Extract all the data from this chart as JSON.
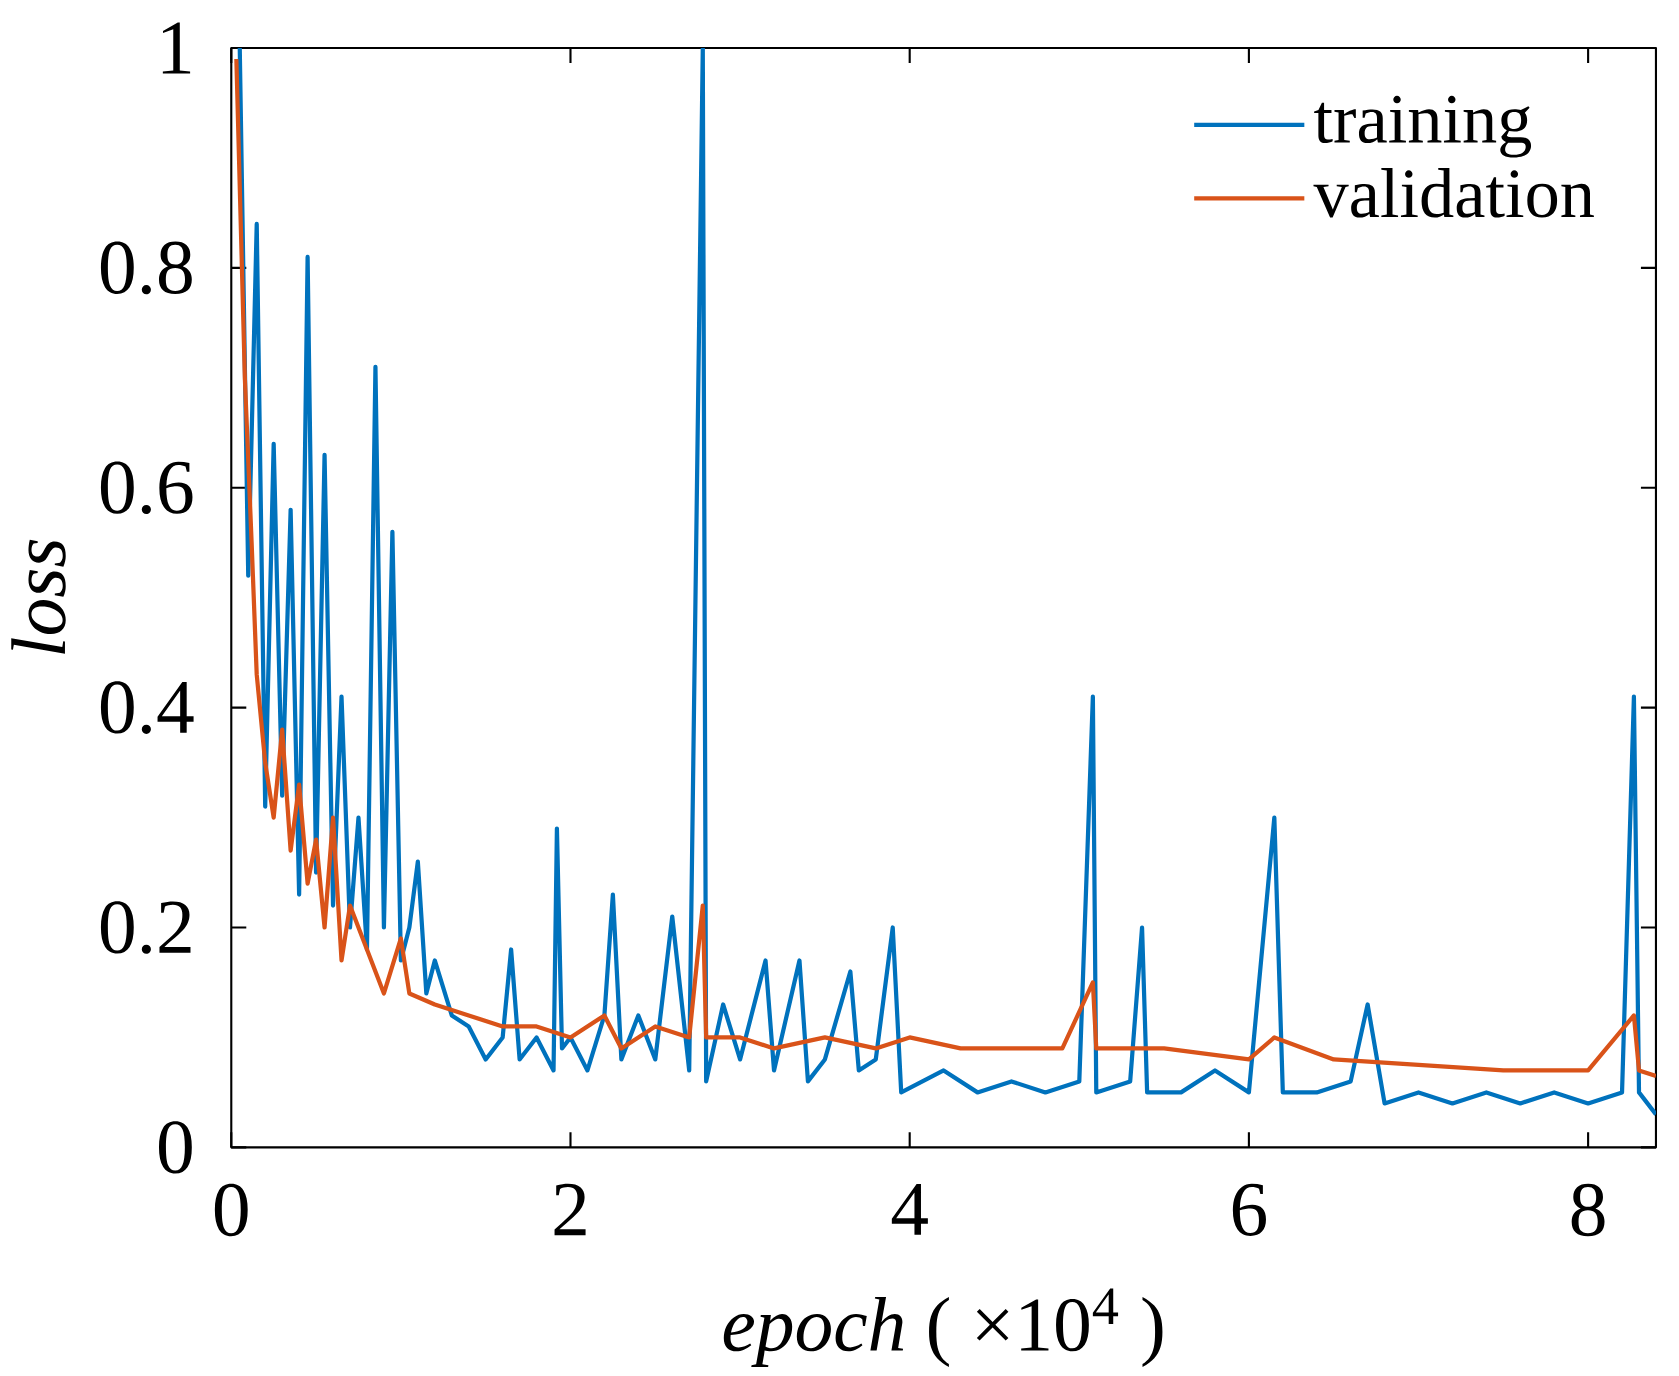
{
  "chart_data": {
    "type": "line",
    "xlabel": "*epoch* ( ×10$^{4}$ )",
    "ylabel": "loss",
    "xlim": [
      0,
      8.4
    ],
    "ylim": [
      0,
      1
    ],
    "xticks": [
      0,
      2,
      4,
      6,
      8
    ],
    "yticks": [
      0,
      0.2,
      0.4,
      0.6,
      0.8,
      1
    ],
    "legend": "top right",
    "grid": false,
    "line_style": "solid",
    "marker": "none",
    "series": [
      {
        "name": "training",
        "color": "#0072bd",
        "x": [
          0.05,
          0.1,
          0.15,
          0.2,
          0.25,
          0.3,
          0.35,
          0.4,
          0.45,
          0.5,
          0.55,
          0.6,
          0.65,
          0.7,
          0.75,
          0.8,
          0.85,
          0.9,
          0.95,
          1.0,
          1.05,
          1.1,
          1.15,
          1.2,
          1.3,
          1.4,
          1.5,
          1.6,
          1.65,
          1.7,
          1.8,
          1.9,
          1.92,
          1.95,
          2.0,
          2.1,
          2.2,
          2.25,
          2.3,
          2.4,
          2.5,
          2.6,
          2.7,
          2.78,
          2.8,
          2.9,
          3.0,
          3.15,
          3.2,
          3.35,
          3.4,
          3.5,
          3.65,
          3.7,
          3.8,
          3.9,
          3.95,
          4.2,
          4.4,
          4.6,
          4.8,
          5.0,
          5.08,
          5.1,
          5.3,
          5.37,
          5.4,
          5.6,
          5.8,
          6.0,
          6.15,
          6.2,
          6.4,
          6.6,
          6.7,
          6.8,
          7.0,
          7.2,
          7.4,
          7.6,
          7.8,
          8.0,
          8.2,
          8.27,
          8.3,
          8.4
        ],
        "values": [
          1.0,
          0.52,
          0.84,
          0.31,
          0.64,
          0.32,
          0.58,
          0.23,
          0.81,
          0.25,
          0.63,
          0.22,
          0.41,
          0.2,
          0.3,
          0.18,
          0.71,
          0.2,
          0.56,
          0.17,
          0.2,
          0.26,
          0.14,
          0.17,
          0.12,
          0.11,
          0.08,
          0.1,
          0.18,
          0.08,
          0.1,
          0.07,
          0.29,
          0.09,
          0.1,
          0.07,
          0.12,
          0.23,
          0.08,
          0.12,
          0.08,
          0.21,
          0.07,
          1.0,
          0.06,
          0.13,
          0.08,
          0.17,
          0.07,
          0.17,
          0.06,
          0.08,
          0.16,
          0.07,
          0.08,
          0.2,
          0.05,
          0.07,
          0.05,
          0.06,
          0.05,
          0.06,
          0.41,
          0.05,
          0.06,
          0.2,
          0.05,
          0.05,
          0.07,
          0.05,
          0.3,
          0.05,
          0.05,
          0.06,
          0.13,
          0.04,
          0.05,
          0.04,
          0.05,
          0.04,
          0.05,
          0.04,
          0.05,
          0.41,
          0.05,
          0.03
        ]
      },
      {
        "name": "validation",
        "color": "#d95319",
        "x": [
          0.03,
          0.08,
          0.12,
          0.15,
          0.2,
          0.25,
          0.3,
          0.35,
          0.4,
          0.45,
          0.5,
          0.55,
          0.6,
          0.65,
          0.7,
          0.8,
          0.9,
          1.0,
          1.05,
          1.2,
          1.4,
          1.6,
          1.8,
          2.0,
          2.2,
          2.3,
          2.5,
          2.7,
          2.78,
          2.8,
          3.0,
          3.2,
          3.5,
          3.8,
          4.0,
          4.3,
          4.6,
          4.9,
          5.08,
          5.1,
          5.5,
          6.0,
          6.15,
          6.5,
          7.0,
          7.5,
          8.0,
          8.27,
          8.3,
          8.4
        ],
        "values": [
          0.99,
          0.7,
          0.55,
          0.43,
          0.35,
          0.3,
          0.38,
          0.27,
          0.33,
          0.24,
          0.28,
          0.2,
          0.3,
          0.17,
          0.22,
          0.18,
          0.14,
          0.19,
          0.14,
          0.13,
          0.12,
          0.11,
          0.11,
          0.1,
          0.12,
          0.09,
          0.11,
          0.1,
          0.22,
          0.1,
          0.1,
          0.09,
          0.1,
          0.09,
          0.1,
          0.09,
          0.09,
          0.09,
          0.15,
          0.09,
          0.09,
          0.08,
          0.1,
          0.08,
          0.075,
          0.07,
          0.07,
          0.12,
          0.07,
          0.065
        ]
      }
    ]
  }
}
